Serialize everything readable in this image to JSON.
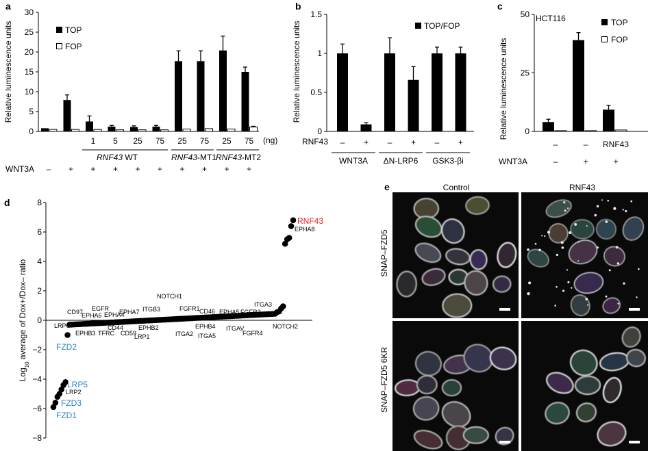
{
  "colors": {
    "black": "#000000",
    "red": "#e0262b",
    "blue": "#2d84c4",
    "micro_bg": "#0a0a0a"
  },
  "chart_data": [
    {
      "panel": "a",
      "type": "bar",
      "ylabel": "Relative luminescence units",
      "ylim": [
        0,
        30
      ],
      "yticks": [
        "0",
        "5",
        "10",
        "15",
        "20",
        "25",
        "30"
      ],
      "series": [
        {
          "name": "TOP",
          "fill": "black",
          "values": [
            0.8,
            7.9,
            2.5,
            1.2,
            1.1,
            1.2,
            17.7,
            17.7,
            20.4,
            15.0
          ],
          "errors": [
            0,
            1.3,
            1.4,
            0.3,
            0.3,
            0.3,
            2.6,
            2.6,
            3.6,
            1.2
          ]
        },
        {
          "name": "FOP",
          "fill": "white",
          "values": [
            0.5,
            0.5,
            0.5,
            0.4,
            0.4,
            0.4,
            0.6,
            0.7,
            0.6,
            1.1
          ],
          "errors": [
            0,
            0,
            0,
            0,
            0,
            0,
            0,
            0,
            0,
            0.2
          ]
        }
      ],
      "doses": [
        "",
        "",
        "1",
        "5",
        "25",
        "75",
        "25",
        "75",
        "25",
        "75"
      ],
      "dose_unit": "(ng)",
      "groups": [
        {
          "label_italic": "RNF43",
          "label_rest": " WT",
          "from": 2,
          "to": 5
        },
        {
          "label_italic": "RNF43",
          "label_rest": "-MT1",
          "from": 6,
          "to": 7
        },
        {
          "label_italic": "RNF43",
          "label_rest": "-MT2",
          "from": 8,
          "to": 9
        }
      ],
      "treatment_label": "WNT3A",
      "treatment": [
        "–",
        "+",
        "+",
        "+",
        "+",
        "+",
        "+",
        "+",
        "+",
        "+"
      ]
    },
    {
      "panel": "b",
      "type": "bar",
      "ylabel": "Relative luminescence units",
      "ylim": [
        0,
        1.5
      ],
      "yticks": [
        "0",
        "0.5",
        "1",
        "1.5"
      ],
      "series": [
        {
          "name": "TOP/FOP",
          "fill": "black",
          "values": [
            1.0,
            0.09,
            1.0,
            0.66,
            1.0,
            1.0
          ],
          "errors": [
            0.12,
            0.02,
            0.2,
            0.17,
            0.08,
            0.08
          ]
        }
      ],
      "treatment_label": "RNF43",
      "treatment": [
        "–",
        "+",
        "–",
        "+",
        "–",
        "+"
      ],
      "groups": [
        {
          "label": "WNT3A",
          "from": 0,
          "to": 1
        },
        {
          "label": "ΔN-LRP6",
          "from": 2,
          "to": 3
        },
        {
          "label": "GSK3-βi",
          "from": 4,
          "to": 5
        }
      ]
    },
    {
      "panel": "c",
      "type": "bar",
      "title": "HCT116",
      "ylabel": "Relative luminescence units",
      "ylim": [
        0,
        50
      ],
      "yticks": [
        "0",
        "25",
        "50"
      ],
      "series": [
        {
          "name": "TOP",
          "fill": "black",
          "values": [
            4.0,
            39.0,
            9.3
          ],
          "errors": [
            1.2,
            3.2,
            1.8
          ]
        },
        {
          "name": "FOP",
          "fill": "white",
          "values": [
            0.3,
            0.3,
            0.6
          ],
          "errors": [
            0,
            0,
            0
          ]
        }
      ],
      "row1": [
        "–",
        "–",
        "RNF43"
      ],
      "treatment_label": "WNT3A",
      "treatment": [
        "–",
        "+",
        "+"
      ]
    },
    {
      "panel": "d",
      "type": "scatter",
      "ylabel_main": "Log",
      "ylabel_sub": "10",
      "ylabel_rest": " average of Dox+/Dox– ratio",
      "ylim": [
        -8,
        8
      ],
      "yticks": [
        "−8",
        "−6",
        "−4",
        "−2",
        "0",
        "2",
        "4",
        "6",
        "8"
      ],
      "n_points": 120,
      "bottom_points": [
        -5.9,
        -5.6,
        -5.2,
        -5.0,
        -4.7,
        -4.4,
        -4.2,
        -1.0
      ],
      "top_points": [
        0.55,
        0.6,
        0.8,
        0.95,
        5.2,
        5.5,
        5.6,
        6.4,
        6.8
      ],
      "highlight": [
        {
          "label": "RNF43",
          "color": "red"
        },
        {
          "label": "FZD2",
          "color": "blue"
        },
        {
          "label": "LRP5",
          "color": "blue"
        },
        {
          "label": "FZD3",
          "color": "blue"
        },
        {
          "label": "FZD1",
          "color": "blue"
        }
      ],
      "gene_labels": [
        "EPHA8",
        "NOTCH1",
        "ITGB3",
        "FGFR1",
        "CD46",
        "EPHA5",
        "FGFR2",
        "ITGA3",
        "EPHA7",
        "EPHA4",
        "EGFR",
        "EPHA6",
        "CD97",
        "LRP6",
        "EPHB3",
        "TFRC",
        "CD44",
        "CD59",
        "LRP1",
        "EPHB2",
        "ITGA2",
        "EPHB4",
        "ITGA5",
        "ITGAV",
        "FGFR4",
        "NOTCH2",
        "LRP2"
      ]
    }
  ],
  "panel_e": {
    "panel": "e",
    "columns": [
      "Control",
      "RNF43"
    ],
    "rows": [
      "SNAP–FZD5",
      "SNAP–FZD5 6KR"
    ]
  },
  "panel_letters": [
    "a",
    "b",
    "c",
    "d",
    "e"
  ]
}
